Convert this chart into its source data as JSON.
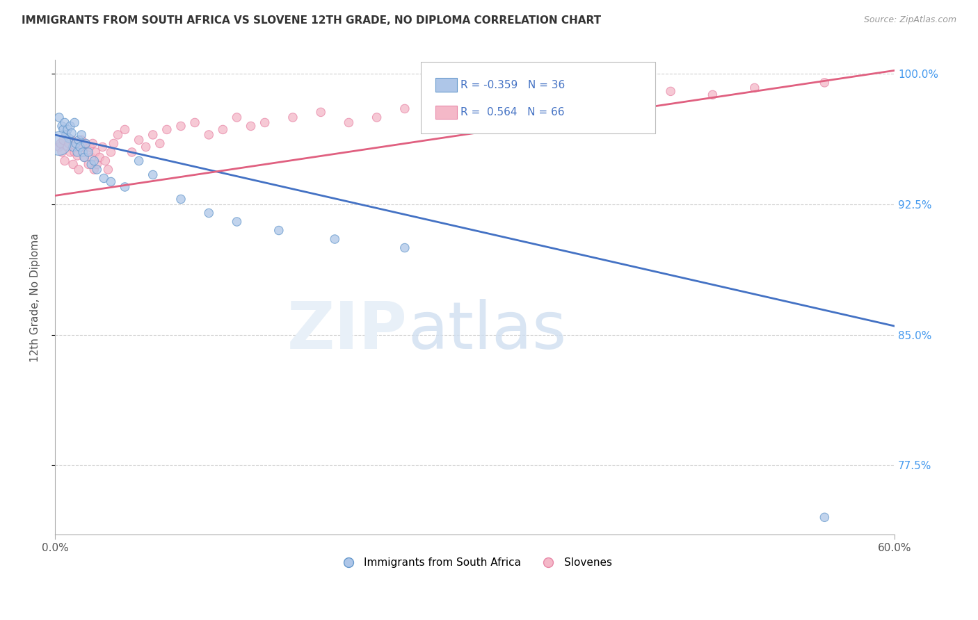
{
  "title": "IMMIGRANTS FROM SOUTH AFRICA VS SLOVENE 12TH GRADE, NO DIPLOMA CORRELATION CHART",
  "source_text": "Source: ZipAtlas.com",
  "ylabel": "12th Grade, No Diploma",
  "legend_label1": "Immigrants from South Africa",
  "legend_label2": "Slovenes",
  "xlim": [
    0.0,
    0.6
  ],
  "ylim": [
    0.735,
    1.008
  ],
  "yticks": [
    1.0,
    0.925,
    0.85,
    0.775
  ],
  "ytick_labels": [
    "100.0%",
    "92.5%",
    "85.0%",
    "77.5%"
  ],
  "xticks": [
    0.0,
    0.6
  ],
  "xtick_labels": [
    "0.0%",
    "60.0%"
  ],
  "blue_scatter_x": [
    0.003,
    0.005,
    0.006,
    0.007,
    0.008,
    0.009,
    0.01,
    0.011,
    0.012,
    0.013,
    0.014,
    0.015,
    0.016,
    0.017,
    0.018,
    0.019,
    0.02,
    0.021,
    0.022,
    0.024,
    0.026,
    0.028,
    0.03,
    0.035,
    0.04,
    0.05,
    0.06,
    0.07,
    0.09,
    0.11,
    0.13,
    0.16,
    0.2,
    0.25,
    0.55,
    0.003
  ],
  "blue_scatter_y": [
    0.975,
    0.97,
    0.968,
    0.972,
    0.965,
    0.968,
    0.963,
    0.97,
    0.966,
    0.958,
    0.972,
    0.96,
    0.955,
    0.962,
    0.958,
    0.965,
    0.955,
    0.952,
    0.96,
    0.955,
    0.948,
    0.95,
    0.945,
    0.94,
    0.938,
    0.935,
    0.95,
    0.942,
    0.928,
    0.92,
    0.915,
    0.91,
    0.905,
    0.9,
    0.745,
    0.96
  ],
  "blue_scatter_sizes": [
    80,
    80,
    80,
    80,
    80,
    80,
    80,
    80,
    80,
    80,
    80,
    80,
    80,
    80,
    80,
    80,
    80,
    80,
    80,
    80,
    80,
    80,
    80,
    80,
    80,
    80,
    80,
    80,
    80,
    80,
    80,
    80,
    80,
    80,
    80,
    600
  ],
  "pink_scatter_x": [
    0.003,
    0.004,
    0.005,
    0.006,
    0.007,
    0.008,
    0.009,
    0.01,
    0.011,
    0.012,
    0.013,
    0.014,
    0.015,
    0.016,
    0.017,
    0.018,
    0.019,
    0.02,
    0.021,
    0.022,
    0.023,
    0.024,
    0.025,
    0.026,
    0.027,
    0.028,
    0.029,
    0.03,
    0.032,
    0.034,
    0.036,
    0.038,
    0.04,
    0.042,
    0.045,
    0.05,
    0.055,
    0.06,
    0.065,
    0.07,
    0.075,
    0.08,
    0.09,
    0.1,
    0.11,
    0.12,
    0.13,
    0.14,
    0.15,
    0.17,
    0.19,
    0.21,
    0.23,
    0.25,
    0.27,
    0.29,
    0.31,
    0.33,
    0.35,
    0.38,
    0.4,
    0.42,
    0.44,
    0.47,
    0.5,
    0.55
  ],
  "pink_scatter_y": [
    0.958,
    0.96,
    0.955,
    0.962,
    0.95,
    0.965,
    0.958,
    0.96,
    0.955,
    0.962,
    0.948,
    0.955,
    0.96,
    0.953,
    0.945,
    0.958,
    0.962,
    0.958,
    0.952,
    0.96,
    0.955,
    0.948,
    0.958,
    0.952,
    0.96,
    0.945,
    0.955,
    0.948,
    0.952,
    0.958,
    0.95,
    0.945,
    0.955,
    0.96,
    0.965,
    0.968,
    0.955,
    0.962,
    0.958,
    0.965,
    0.96,
    0.968,
    0.97,
    0.972,
    0.965,
    0.968,
    0.975,
    0.97,
    0.972,
    0.975,
    0.978,
    0.972,
    0.975,
    0.98,
    0.978,
    0.982,
    0.985,
    0.98,
    0.978,
    0.985,
    0.988,
    0.985,
    0.99,
    0.988,
    0.992,
    0.995
  ],
  "pink_scatter_sizes": [
    80,
    80,
    80,
    80,
    80,
    80,
    80,
    80,
    80,
    80,
    80,
    80,
    80,
    80,
    80,
    80,
    80,
    80,
    80,
    80,
    80,
    80,
    80,
    80,
    80,
    80,
    80,
    80,
    80,
    80,
    80,
    80,
    80,
    80,
    80,
    80,
    80,
    80,
    80,
    80,
    80,
    80,
    80,
    80,
    80,
    80,
    80,
    80,
    80,
    80,
    80,
    80,
    80,
    80,
    80,
    80,
    80,
    80,
    80,
    80,
    80,
    80,
    80,
    80,
    80,
    80
  ],
  "blue_line_x0": 0.0,
  "blue_line_x1": 0.6,
  "blue_line_y0": 0.965,
  "blue_line_y1": 0.855,
  "pink_line_x0": 0.0,
  "pink_line_x1": 0.6,
  "pink_line_y0": 0.93,
  "pink_line_y1": 1.002,
  "blue_face_color": "#aec6e8",
  "blue_edge_color": "#6699cc",
  "pink_face_color": "#f4b8c8",
  "pink_edge_color": "#e888a8",
  "blue_line_color": "#4472c4",
  "pink_line_color": "#e06080",
  "background_color": "#ffffff",
  "grid_color": "#cccccc",
  "r_value_color": "#4472c4",
  "legend_r1": "R = -0.359",
  "legend_n1": "N = 36",
  "legend_r2": "R =  0.564",
  "legend_n2": "N = 66"
}
